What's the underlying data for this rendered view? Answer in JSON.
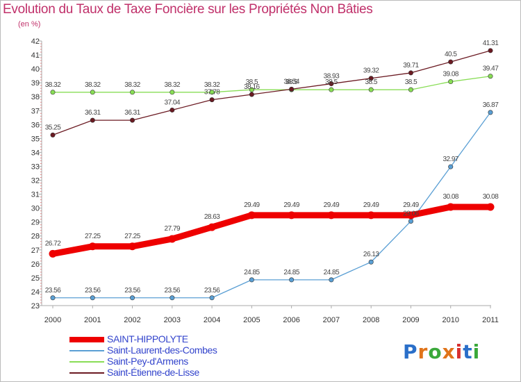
{
  "chart_data": {
    "type": "line",
    "title": "Evolution du Taux de Taxe Foncière sur les Propriétés Non Bâties",
    "unit": "(en %)",
    "x": [
      "2000",
      "2001",
      "2002",
      "2003",
      "2004",
      "2005",
      "2006",
      "2007",
      "2008",
      "2009",
      "2010",
      "2011"
    ],
    "y_ticks": [
      "23",
      "24",
      "25",
      "26",
      "27",
      "28",
      "29",
      "30",
      "31",
      "32",
      "33",
      "34",
      "35",
      "36",
      "37",
      "38",
      "39",
      "40",
      "41",
      "42"
    ],
    "ylim": [
      23,
      42
    ],
    "grid": false,
    "legend_position": "bottom-left",
    "series": [
      {
        "name": "SAINT-HIPPOLYTE",
        "color": "#ee0000",
        "values": [
          26.72,
          27.25,
          27.25,
          27.79,
          28.63,
          29.49,
          29.49,
          29.49,
          29.49,
          29.49,
          30.08,
          30.08
        ],
        "labels": [
          "26.72",
          "27.25",
          "27.25",
          "27.79",
          "28.63",
          "29.49",
          "29.49",
          "29.49",
          "29.49",
          "29.49",
          "30.08",
          "30.08"
        ]
      },
      {
        "name": "Saint-Laurent-des-Combes",
        "color": "#5a9fd4",
        "values": [
          23.56,
          23.56,
          23.56,
          23.56,
          23.56,
          24.85,
          24.85,
          24.85,
          26.13,
          29.06,
          32.97,
          36.87
        ],
        "labels": [
          "23.56",
          "23.56",
          "23.56",
          "23.56",
          "23.56",
          "24.85",
          "24.85",
          "24.85",
          "26.13",
          "29.06",
          "32.97",
          "36.87"
        ]
      },
      {
        "name": "Saint-Pey-d'Armens",
        "color": "#88dd55",
        "values": [
          38.32,
          38.32,
          38.32,
          38.32,
          38.32,
          38.5,
          38.5,
          38.5,
          38.5,
          38.5,
          39.08,
          39.47
        ],
        "labels": [
          "38.32",
          "38.32",
          "38.32",
          "38.32",
          "38.32",
          "38.5",
          "38.5",
          "38.5",
          "38.5",
          "38.5",
          "39.08",
          "39.47"
        ]
      },
      {
        "name": "Saint-Étienne-de-Lisse",
        "color": "#6b1a22",
        "values": [
          35.25,
          36.31,
          36.31,
          37.04,
          37.78,
          38.16,
          38.54,
          38.93,
          39.32,
          39.71,
          40.5,
          41.31
        ],
        "labels": [
          "35.25",
          "36.31",
          "36.31",
          "37.04",
          "37.78",
          "38.16",
          "38.54",
          "38.93",
          "39.32",
          "39.71",
          "40.5",
          "41.31"
        ]
      }
    ]
  },
  "logo": {
    "letters": [
      "P",
      "r",
      "o",
      "x",
      "i",
      "t",
      "i"
    ],
    "colors": [
      "#2a6fc9",
      "#e0741a",
      "#3aa83a",
      "#e0741a",
      "#d83030",
      "#2a6fc9",
      "#3aa83a"
    ]
  }
}
